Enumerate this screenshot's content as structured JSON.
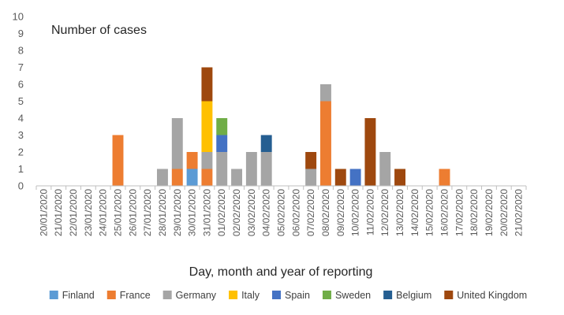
{
  "chart_data": {
    "type": "bar",
    "stacked": true,
    "title": "",
    "annotation": "Number of cases",
    "xlabel": "Day, month and year of reporting",
    "ylabel": "",
    "ylim": [
      0,
      10
    ],
    "yticks": [
      0,
      1,
      2,
      3,
      4,
      5,
      6,
      7,
      8,
      9,
      10
    ],
    "grid": false,
    "legend_position": "bottom",
    "categories": [
      "20/01/2020",
      "21/01/2020",
      "22/01/2020",
      "23/01/2020",
      "24/01/2020",
      "25/01/2020",
      "26/01/2020",
      "27/01/2020",
      "28/01/2020",
      "29/01/2020",
      "30/01/2020",
      "31/01/2020",
      "01/02/2020",
      "02/02/2020",
      "03/02/2020",
      "04/02/2020",
      "05/02/2020",
      "06/02/2020",
      "07/02/2020",
      "08/02/2020",
      "09/02/2020",
      "10/02/2020",
      "11/02/2020",
      "12/02/2020",
      "13/02/2020",
      "14/02/2020",
      "15/02/2020",
      "16/02/2020",
      "17/02/2020",
      "18/02/2020",
      "19/02/2020",
      "20/02/2020",
      "21/02/2020"
    ],
    "series": [
      {
        "name": "Finland",
        "color": "#5b9bd5",
        "values": [
          0,
          0,
          0,
          0,
          0,
          0,
          0,
          0,
          0,
          0,
          1,
          0,
          0,
          0,
          0,
          0,
          0,
          0,
          0,
          0,
          0,
          0,
          0,
          0,
          0,
          0,
          0,
          0,
          0,
          0,
          0,
          0,
          0
        ]
      },
      {
        "name": "France",
        "color": "#ed7d31",
        "values": [
          0,
          0,
          0,
          0,
          0,
          3,
          0,
          0,
          0,
          1,
          1,
          1,
          0,
          0,
          0,
          0,
          0,
          0,
          0,
          5,
          0,
          0,
          0,
          0,
          0,
          0,
          0,
          1,
          0,
          0,
          0,
          0,
          0
        ]
      },
      {
        "name": "Germany",
        "color": "#a5a5a5",
        "values": [
          0,
          0,
          0,
          0,
          0,
          0,
          0,
          0,
          1,
          3,
          0,
          1,
          2,
          1,
          2,
          2,
          0,
          0,
          1,
          1,
          0,
          0,
          0,
          2,
          0,
          0,
          0,
          0,
          0,
          0,
          0,
          0,
          0
        ]
      },
      {
        "name": "Italy",
        "color": "#ffc000",
        "values": [
          0,
          0,
          0,
          0,
          0,
          0,
          0,
          0,
          0,
          0,
          0,
          3,
          0,
          0,
          0,
          0,
          0,
          0,
          0,
          0,
          0,
          0,
          0,
          0,
          0,
          0,
          0,
          0,
          0,
          0,
          0,
          0,
          0
        ]
      },
      {
        "name": "Spain",
        "color": "#4472c4",
        "values": [
          0,
          0,
          0,
          0,
          0,
          0,
          0,
          0,
          0,
          0,
          0,
          0,
          1,
          0,
          0,
          0,
          0,
          0,
          0,
          0,
          0,
          1,
          0,
          0,
          0,
          0,
          0,
          0,
          0,
          0,
          0,
          0,
          0
        ]
      },
      {
        "name": "Sweden",
        "color": "#70ad47",
        "values": [
          0,
          0,
          0,
          0,
          0,
          0,
          0,
          0,
          0,
          0,
          0,
          0,
          1,
          0,
          0,
          0,
          0,
          0,
          0,
          0,
          0,
          0,
          0,
          0,
          0,
          0,
          0,
          0,
          0,
          0,
          0,
          0,
          0
        ]
      },
      {
        "name": "Belgium",
        "color": "#255e91",
        "values": [
          0,
          0,
          0,
          0,
          0,
          0,
          0,
          0,
          0,
          0,
          0,
          0,
          0,
          0,
          0,
          1,
          0,
          0,
          0,
          0,
          0,
          0,
          0,
          0,
          0,
          0,
          0,
          0,
          0,
          0,
          0,
          0,
          0
        ]
      },
      {
        "name": "United Kingdom",
        "color": "#9e480e",
        "values": [
          0,
          0,
          0,
          0,
          0,
          0,
          0,
          0,
          0,
          0,
          0,
          2,
          0,
          0,
          0,
          0,
          0,
          0,
          1,
          0,
          1,
          0,
          4,
          0,
          1,
          0,
          0,
          0,
          0,
          0,
          0,
          0,
          0
        ]
      }
    ]
  }
}
